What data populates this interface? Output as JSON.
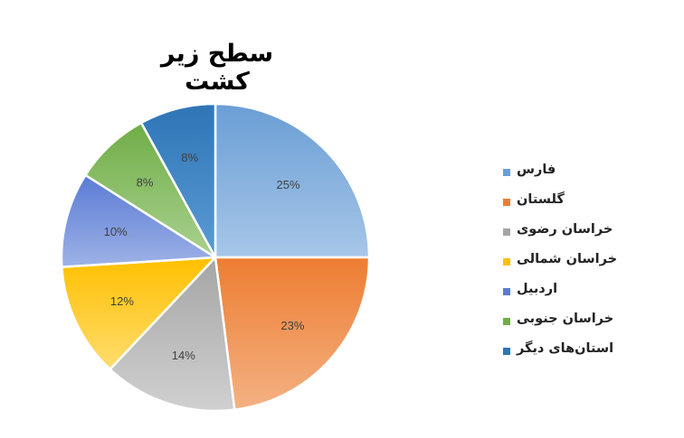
{
  "chart_data": {
    "type": "pie",
    "title": "سطح زیر کشت",
    "legend_position": "right",
    "slices": [
      {
        "name": "فارس",
        "value": 25,
        "label": "25%",
        "color": "#6A9ED5",
        "light": "#A7C6E8"
      },
      {
        "name": "گلستان",
        "value": 23,
        "label": "23%",
        "color": "#ED7D31",
        "light": "#F4B183"
      },
      {
        "name": "خراسان رضوی",
        "value": 14,
        "label": "14%",
        "color": "#A5A5A5",
        "light": "#D0D0D0"
      },
      {
        "name": "خراسان شمالی",
        "value": 12,
        "label": "12%",
        "color": "#FFC000",
        "light": "#FFDC6E"
      },
      {
        "name": "اردبیل",
        "value": 10,
        "label": "10%",
        "color": "#5B7BD5",
        "light": "#9DB2E6"
      },
      {
        "name": "خراسان جنوبی",
        "value": 8,
        "label": "8%",
        "color": "#70AD47",
        "light": "#A9D18E"
      },
      {
        "name": "استان‌های دیگر",
        "value": 8,
        "label": "8%",
        "color": "#2E75B6",
        "light": "#5B9BD5"
      }
    ]
  }
}
